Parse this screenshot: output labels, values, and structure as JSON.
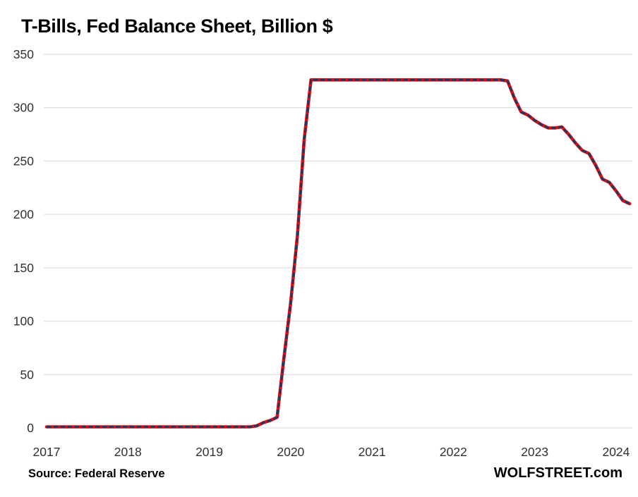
{
  "chart_data": {
    "type": "line",
    "title": "T-Bills, Fed Balance Sheet, Billion $",
    "xlabel": "",
    "ylabel": "",
    "ylim": [
      0,
      350
    ],
    "xlim": [
      2017,
      2024.2
    ],
    "y_ticks": [
      0,
      50,
      100,
      150,
      200,
      250,
      300,
      350
    ],
    "x_ticks": [
      2017,
      2018,
      2019,
      2020,
      2021,
      2022,
      2023,
      2024
    ],
    "grid": "horizontal",
    "legend": "none",
    "colors": {
      "line": "#f50708",
      "marker": "#1f3864",
      "grid": "#d9d9d9",
      "tick_label": "#303030",
      "title": "#000000",
      "background": "#ffffff"
    },
    "series": [
      {
        "name": "T-Bills held by the Fed, billion USD",
        "months": [
          "2017-01",
          "2017-02",
          "2017-03",
          "2017-04",
          "2017-05",
          "2017-06",
          "2017-07",
          "2017-08",
          "2017-09",
          "2017-10",
          "2017-11",
          "2017-12",
          "2018-01",
          "2018-02",
          "2018-03",
          "2018-04",
          "2018-05",
          "2018-06",
          "2018-07",
          "2018-08",
          "2018-09",
          "2018-10",
          "2018-11",
          "2018-12",
          "2019-01",
          "2019-02",
          "2019-03",
          "2019-04",
          "2019-05",
          "2019-06",
          "2019-07",
          "2019-08",
          "2019-09",
          "2019-10",
          "2019-11",
          "2019-12",
          "2020-01",
          "2020-02",
          "2020-03",
          "2020-04",
          "2020-05",
          "2020-06",
          "2020-07",
          "2020-08",
          "2020-09",
          "2020-10",
          "2020-11",
          "2020-12",
          "2021-01",
          "2021-02",
          "2021-03",
          "2021-04",
          "2021-05",
          "2021-06",
          "2021-07",
          "2021-08",
          "2021-09",
          "2021-10",
          "2021-11",
          "2021-12",
          "2022-01",
          "2022-02",
          "2022-03",
          "2022-04",
          "2022-05",
          "2022-06",
          "2022-07",
          "2022-08",
          "2022-09",
          "2022-10",
          "2022-11",
          "2022-12",
          "2023-01",
          "2023-02",
          "2023-03",
          "2023-04",
          "2023-05",
          "2023-06",
          "2023-07",
          "2023-08",
          "2023-09",
          "2023-10",
          "2023-11",
          "2023-12",
          "2024-01",
          "2024-02",
          "2024-03"
        ],
        "values": [
          1,
          1,
          1,
          1,
          1,
          1,
          1,
          1,
          1,
          1,
          1,
          1,
          1,
          1,
          1,
          1,
          1,
          1,
          1,
          1,
          1,
          1,
          1,
          1,
          1,
          1,
          1,
          1,
          1,
          1,
          1,
          2,
          5,
          7,
          10,
          65,
          117,
          180,
          270,
          326,
          326,
          326,
          326,
          326,
          326,
          326,
          326,
          326,
          326,
          326,
          326,
          326,
          326,
          326,
          326,
          326,
          326,
          326,
          326,
          326,
          326,
          326,
          326,
          326,
          326,
          326,
          326,
          326,
          325,
          309,
          296,
          293,
          288,
          284,
          281,
          281,
          282,
          275,
          267,
          260,
          257,
          246,
          233,
          230,
          222,
          213,
          210
        ]
      }
    ]
  },
  "footer": {
    "source": "Source: Federal Reserve",
    "watermark": "WOLFSTREET.com"
  }
}
